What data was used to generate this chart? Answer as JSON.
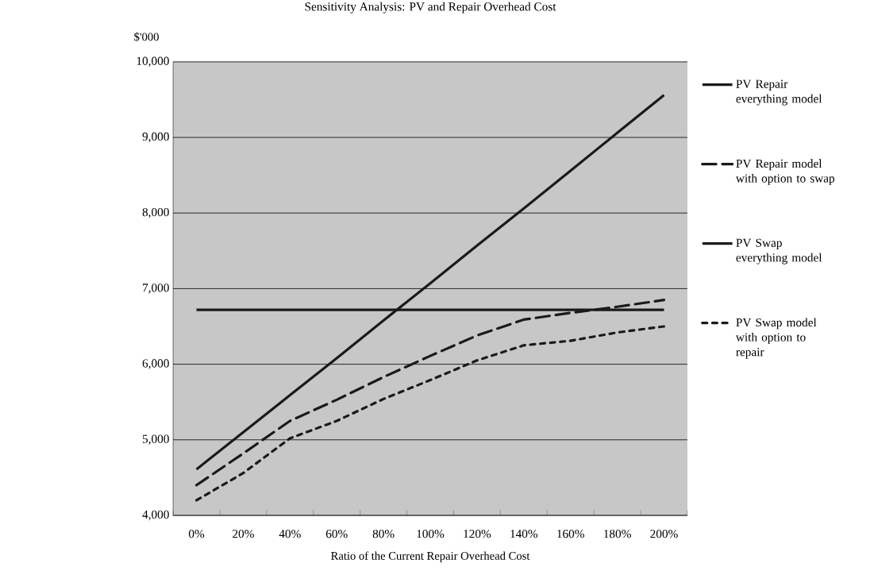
{
  "chart_data": {
    "type": "line",
    "title": "Sensitivity Analysis: PV and Repair Overhead Cost",
    "xlabel": "Ratio of the Current Repair Overhead Cost",
    "ylabel": "$'000",
    "categories": [
      "0%",
      "20%",
      "40%",
      "60%",
      "80%",
      "100%",
      "120%",
      "140%",
      "160%",
      "180%",
      "200%"
    ],
    "series": [
      {
        "name": "PV Repair everything model",
        "color": "#1a1a1a",
        "line_style": "solid",
        "values": [
          4610,
          5100,
          5590,
          6080,
          6580,
          7070,
          7570,
          8060,
          8560,
          9060,
          9560
        ]
      },
      {
        "name": "PV Repair model with option to swap",
        "color": "#1a1a1a",
        "line_style": "dashed",
        "values": [
          4400,
          4820,
          5250,
          5530,
          5830,
          6110,
          6380,
          6590,
          6680,
          6760,
          6850
        ]
      },
      {
        "name": "PV Swap everything model",
        "color": "#1a1a1a",
        "line_style": "solid",
        "values": [
          6720,
          6720,
          6720,
          6720,
          6720,
          6720,
          6720,
          6720,
          6720,
          6720,
          6720
        ]
      },
      {
        "name": "PV Swap model with option to repair",
        "color": "#1a1a1a",
        "line_style": "dotted",
        "values": [
          4200,
          4560,
          5020,
          5250,
          5540,
          5790,
          6050,
          6250,
          6310,
          6420,
          6500
        ]
      }
    ],
    "ylim": [
      4000,
      10000
    ],
    "yticks": [
      {
        "value": 4000,
        "label": "4,000"
      },
      {
        "value": 5000,
        "label": "5,000"
      },
      {
        "value": 6000,
        "label": "6,000"
      },
      {
        "value": 7000,
        "label": "7,000"
      },
      {
        "value": 8000,
        "label": "8,000"
      },
      {
        "value": 9000,
        "label": "9,000"
      },
      {
        "value": 10000,
        "label": "10,000"
      }
    ],
    "grid": "y",
    "legend": "right",
    "marker": "none"
  }
}
